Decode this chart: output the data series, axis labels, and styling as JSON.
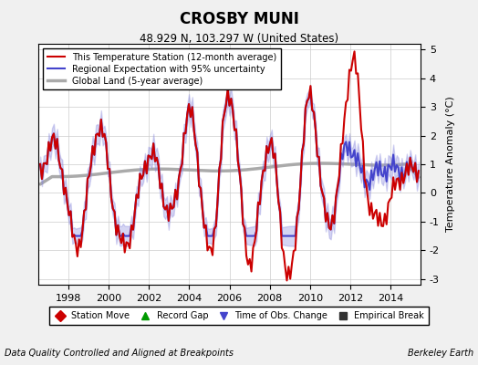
{
  "title": "CROSBY MUNI",
  "subtitle": "48.929 N, 103.297 W (United States)",
  "ylabel": "Temperature Anomaly (°C)",
  "footer_left": "Data Quality Controlled and Aligned at Breakpoints",
  "footer_right": "Berkeley Earth",
  "xlim": [
    1996.5,
    2015.5
  ],
  "ylim": [
    -3.2,
    5.2
  ],
  "yticks": [
    -3,
    -2,
    -1,
    0,
    1,
    2,
    3,
    4,
    5
  ],
  "xticks": [
    1998,
    2000,
    2002,
    2004,
    2006,
    2008,
    2010,
    2012,
    2014
  ],
  "background_color": "#f0f0f0",
  "plot_bg_color": "#ffffff",
  "legend_items": [
    {
      "label": "This Temperature Station (12-month average)",
      "color": "#cc0000",
      "lw": 1.5
    },
    {
      "label": "Regional Expectation with 95% uncertainty",
      "color": "#4444cc",
      "lw": 1.5
    },
    {
      "label": "Global Land (5-year average)",
      "color": "#aaaaaa",
      "lw": 2.5
    }
  ],
  "marker_legend": [
    {
      "marker": "D",
      "color": "#cc0000",
      "label": "Station Move"
    },
    {
      "marker": "^",
      "color": "#009900",
      "label": "Record Gap"
    },
    {
      "marker": "v",
      "color": "#4444cc",
      "label": "Time of Obs. Change"
    },
    {
      "marker": "s",
      "color": "#333333",
      "label": "Empirical Break"
    }
  ]
}
